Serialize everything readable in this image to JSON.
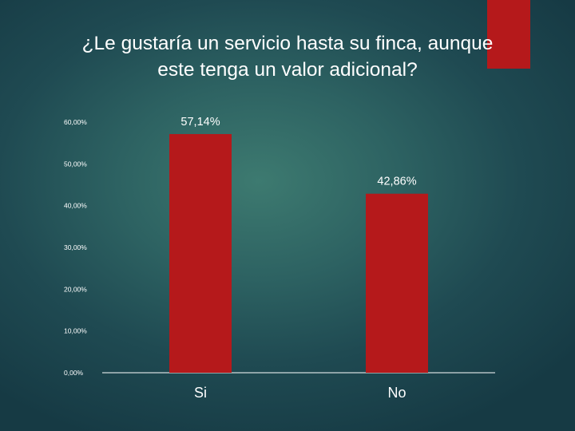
{
  "slide": {
    "title_line1": "¿Le gustaría un servicio hasta su finca, aunque",
    "title_line2": "este tenga un valor adicional?",
    "accent_color": "#b5191b"
  },
  "chart_data": {
    "type": "bar",
    "title": "¿Le gustaría un servicio hasta su finca, aunque este tenga un valor adicional?",
    "categories": [
      "Si",
      "No"
    ],
    "values": [
      57.14,
      42.86
    ],
    "data_labels": [
      "57,14%",
      "42,86%"
    ],
    "ylim": [
      0,
      60
    ],
    "yticks": [
      0,
      10,
      20,
      30,
      40,
      50,
      60
    ],
    "ytick_labels": [
      "0,00%",
      "10,00%",
      "20,00%",
      "30,00%",
      "40,00%",
      "50,00%",
      "60,00%"
    ],
    "xlabel": "",
    "ylabel": "",
    "grid": false,
    "bar_color": "#b5191b",
    "legend": "none"
  }
}
